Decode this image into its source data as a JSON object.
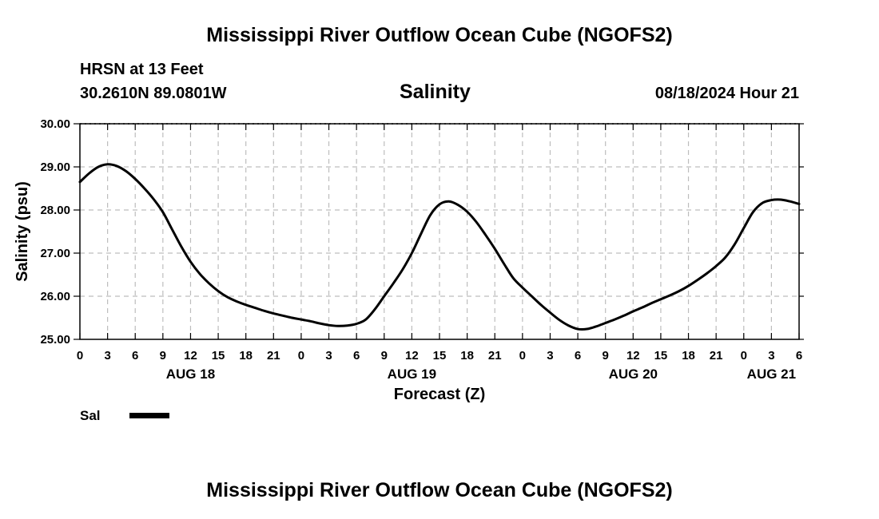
{
  "page": {
    "title_top": "Mississippi River Outflow Ocean Cube (NGOFS2)",
    "title_bottom": "Mississippi River Outflow Ocean Cube (NGOFS2)",
    "station": "HRSN at 13 Feet",
    "coords": "30.2610N  89.0801W",
    "datetime": "08/18/2024 Hour 21"
  },
  "chart_data": {
    "type": "line",
    "title": "Salinity",
    "xlabel": "Forecast (Z)",
    "ylabel": "Salinity (psu)",
    "ylim": [
      25.0,
      30.0
    ],
    "xlim": [
      0,
      78
    ],
    "x_units": "hours since 2024-08-18 00Z",
    "grid": true,
    "y_ticks": [
      "25.00",
      "26.00",
      "27.00",
      "28.00",
      "29.00",
      "30.00"
    ],
    "x_tick_labels": [
      "0",
      "3",
      "6",
      "9",
      "12",
      "15",
      "18",
      "21",
      "0",
      "3",
      "6",
      "9",
      "12",
      "15",
      "18",
      "21",
      "0",
      "3",
      "6",
      "9",
      "12",
      "15",
      "18",
      "21",
      "0",
      "3",
      "6"
    ],
    "date_labels": [
      {
        "label": "AUG 18",
        "hour": 12
      },
      {
        "label": "AUG 19",
        "hour": 36
      },
      {
        "label": "AUG 20",
        "hour": 60
      },
      {
        "label": "AUG 21",
        "hour": 75
      }
    ],
    "legend": {
      "label": "Sal",
      "position": "bottom-left"
    },
    "series": [
      {
        "name": "Sal",
        "color": "#000000",
        "x": [
          0,
          1,
          2,
          3,
          4,
          5,
          6,
          7,
          8,
          9,
          10,
          11,
          12,
          13,
          14,
          15,
          16,
          17,
          18,
          19,
          20,
          21,
          22,
          23,
          24,
          25,
          26,
          27,
          28,
          29,
          30,
          31,
          32,
          33,
          34,
          35,
          36,
          37,
          38,
          39,
          40,
          41,
          42,
          43,
          44,
          45,
          46,
          47,
          48,
          49,
          50,
          51,
          52,
          53,
          54,
          55,
          56,
          57,
          58,
          59,
          60,
          61,
          62,
          63,
          64,
          65,
          66,
          67,
          68,
          69,
          70,
          71,
          72,
          73,
          74,
          75,
          76,
          77,
          78
        ],
        "values": [
          28.65,
          28.85,
          29.0,
          29.06,
          29.02,
          28.9,
          28.72,
          28.5,
          28.25,
          27.95,
          27.55,
          27.15,
          26.8,
          26.52,
          26.3,
          26.12,
          25.98,
          25.88,
          25.8,
          25.73,
          25.66,
          25.6,
          25.55,
          25.5,
          25.46,
          25.42,
          25.37,
          25.33,
          25.31,
          25.32,
          25.36,
          25.46,
          25.7,
          26.0,
          26.3,
          26.62,
          27.0,
          27.45,
          27.88,
          28.13,
          28.2,
          28.12,
          27.96,
          27.72,
          27.42,
          27.1,
          26.75,
          26.42,
          26.2,
          26.0,
          25.8,
          25.62,
          25.45,
          25.32,
          25.24,
          25.24,
          25.3,
          25.38,
          25.46,
          25.55,
          25.65,
          25.74,
          25.84,
          25.93,
          26.02,
          26.12,
          26.24,
          26.38,
          26.53,
          26.7,
          26.9,
          27.2,
          27.58,
          27.95,
          28.16,
          28.23,
          28.24,
          28.2,
          28.14
        ]
      }
    ]
  }
}
